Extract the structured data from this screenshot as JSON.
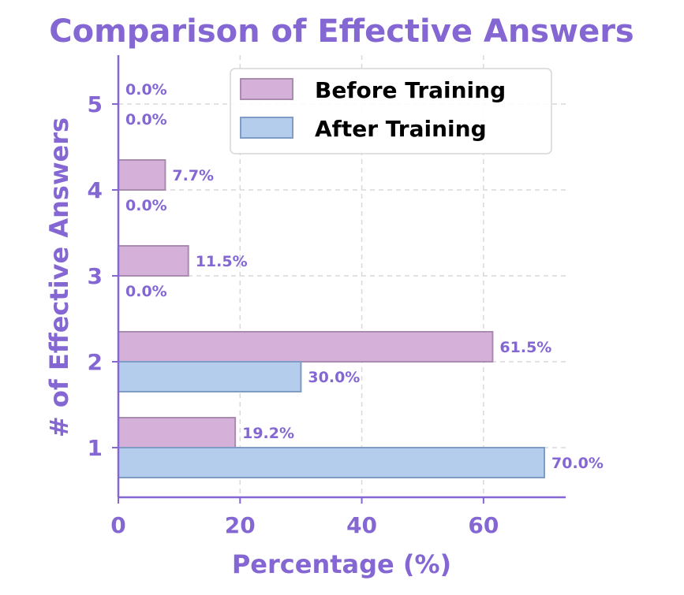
{
  "chart_data": {
    "type": "bar",
    "orientation": "horizontal",
    "title": "Comparison of Effective Answers",
    "xlabel": "Percentage (%)",
    "ylabel": "# of Effective Answers",
    "categories": [
      "1",
      "2",
      "3",
      "4",
      "5"
    ],
    "xlim": [
      0,
      73.5
    ],
    "xticks": [
      "0",
      "20",
      "40",
      "60"
    ],
    "grid": true,
    "legend_position": "top-right",
    "series": [
      {
        "name": "Before Training",
        "values": [
          19.2,
          61.5,
          11.5,
          7.7,
          0.0
        ],
        "labels": [
          "19.2%",
          "61.5%",
          "11.5%",
          "7.7%",
          "0.0%"
        ],
        "color": "#d5b0d9",
        "edge_color": "#a98bad"
      },
      {
        "name": "After Training",
        "values": [
          70.0,
          30.0,
          0.0,
          0.0,
          0.0
        ],
        "labels": [
          "70.0%",
          "30.0%",
          "0.0%",
          "0.0%",
          "0.0%"
        ],
        "color": "#b5cdec",
        "edge_color": "#7e9cc4"
      }
    ],
    "text_color": "#8467d2",
    "axis_color": "#8467d2"
  }
}
